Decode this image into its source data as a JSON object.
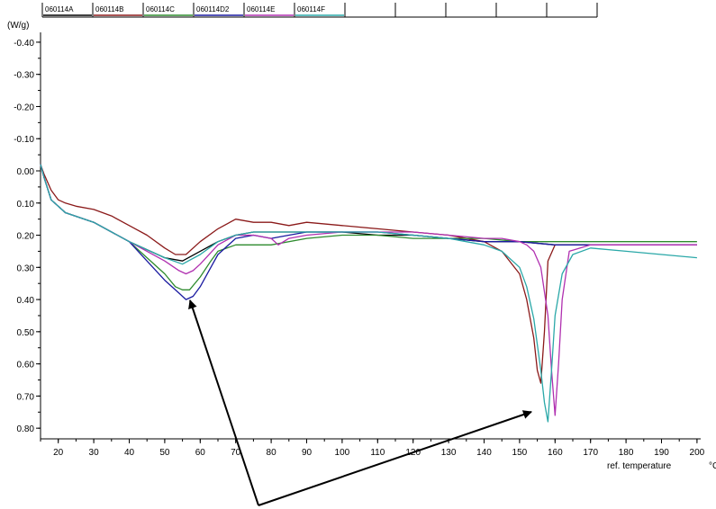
{
  "chart_data": {
    "type": "line",
    "y_unit": "(W/g)",
    "xlabel": "ref. temperature",
    "x_unit": "°C",
    "xlim": [
      15,
      200
    ],
    "ylim": [
      -0.42,
      0.85
    ],
    "y_inverted": true,
    "grid": false,
    "legend_placement": "top",
    "x_ticks": [
      "20",
      "30",
      "40",
      "50",
      "60",
      "70",
      "80",
      "90",
      "100",
      "110",
      "120",
      "130",
      "140",
      "150",
      "160",
      "170",
      "180",
      "190",
      "200"
    ],
    "y_ticks": [
      "-0.40",
      "-0.30",
      "-0.20",
      "-0.10",
      "0.00",
      "0.10",
      "0.20",
      "0.30",
      "0.40",
      "0.50",
      "0.60",
      "0.70",
      "0.80"
    ],
    "series": [
      {
        "name": "060114A",
        "color": "#000000",
        "x": [
          15,
          16,
          18,
          22,
          30,
          40,
          50,
          55,
          60,
          65,
          70,
          75,
          80,
          90,
          100,
          110,
          120,
          130,
          140,
          150,
          160,
          170,
          180,
          190,
          200
        ],
        "y": [
          -0.02,
          0.02,
          0.09,
          0.13,
          0.16,
          0.22,
          0.27,
          0.28,
          0.25,
          0.22,
          0.2,
          0.19,
          0.19,
          0.19,
          0.19,
          0.2,
          0.2,
          0.21,
          0.22,
          0.22,
          0.23,
          0.23,
          0.23,
          0.23,
          0.23
        ]
      },
      {
        "name": "060114B",
        "color": "#8b1a1a",
        "x": [
          15,
          16,
          18,
          20,
          22,
          25,
          30,
          35,
          40,
          45,
          50,
          53,
          56,
          60,
          65,
          70,
          75,
          80,
          85,
          90,
          100,
          110,
          120,
          130,
          140,
          145,
          150,
          152,
          154,
          155,
          156,
          157,
          158,
          160,
          170,
          180,
          190,
          200
        ],
        "y": [
          -0.02,
          0.01,
          0.06,
          0.09,
          0.1,
          0.11,
          0.12,
          0.14,
          0.17,
          0.2,
          0.24,
          0.26,
          0.26,
          0.22,
          0.18,
          0.15,
          0.16,
          0.16,
          0.17,
          0.16,
          0.17,
          0.18,
          0.19,
          0.2,
          0.22,
          0.25,
          0.32,
          0.4,
          0.52,
          0.62,
          0.66,
          0.5,
          0.28,
          0.23,
          0.23,
          0.23,
          0.23,
          0.23
        ]
      },
      {
        "name": "060114C",
        "color": "#2e8b2e",
        "x": [
          15,
          16,
          18,
          22,
          30,
          40,
          45,
          50,
          53,
          55,
          57,
          60,
          63,
          65,
          70,
          75,
          80,
          90,
          100,
          110,
          120,
          130,
          140,
          150,
          160,
          170,
          180,
          190,
          200
        ],
        "y": [
          -0.02,
          0.02,
          0.09,
          0.13,
          0.16,
          0.22,
          0.27,
          0.32,
          0.36,
          0.37,
          0.37,
          0.33,
          0.28,
          0.25,
          0.23,
          0.23,
          0.23,
          0.21,
          0.2,
          0.2,
          0.21,
          0.21,
          0.21,
          0.22,
          0.22,
          0.22,
          0.22,
          0.22,
          0.22
        ]
      },
      {
        "name": "060114D2",
        "color": "#1a1aa0",
        "x": [
          15,
          16,
          18,
          22,
          30,
          40,
          45,
          50,
          54,
          56,
          58,
          60,
          63,
          65,
          70,
          75,
          80,
          85,
          90,
          100,
          110,
          120,
          130,
          140,
          150,
          160,
          170,
          180,
          190,
          200
        ],
        "y": [
          -0.02,
          0.02,
          0.09,
          0.13,
          0.16,
          0.22,
          0.28,
          0.34,
          0.38,
          0.4,
          0.39,
          0.36,
          0.3,
          0.26,
          0.21,
          0.2,
          0.21,
          0.2,
          0.19,
          0.19,
          0.19,
          0.2,
          0.21,
          0.22,
          0.22,
          0.23,
          0.23,
          0.23,
          0.23,
          0.23
        ]
      },
      {
        "name": "060114E",
        "color": "#b030b0",
        "x": [
          15,
          16,
          18,
          22,
          30,
          40,
          50,
          54,
          56,
          58,
          60,
          65,
          70,
          75,
          80,
          82,
          85,
          90,
          100,
          110,
          120,
          130,
          140,
          145,
          150,
          152,
          154,
          156,
          158,
          159,
          160,
          161,
          162,
          164,
          170,
          180,
          190,
          200
        ],
        "y": [
          -0.02,
          0.02,
          0.09,
          0.13,
          0.16,
          0.22,
          0.28,
          0.31,
          0.32,
          0.31,
          0.29,
          0.23,
          0.2,
          0.2,
          0.21,
          0.23,
          0.21,
          0.2,
          0.19,
          0.19,
          0.19,
          0.2,
          0.21,
          0.21,
          0.22,
          0.23,
          0.25,
          0.3,
          0.45,
          0.62,
          0.76,
          0.6,
          0.4,
          0.25,
          0.23,
          0.23,
          0.23,
          0.23
        ]
      },
      {
        "name": "060114F",
        "color": "#2aa8a8",
        "x": [
          15,
          16,
          18,
          22,
          30,
          40,
          50,
          55,
          60,
          65,
          70,
          75,
          80,
          85,
          90,
          100,
          110,
          120,
          130,
          140,
          145,
          150,
          152,
          154,
          156,
          157,
          158,
          159,
          160,
          162,
          165,
          170,
          180,
          190,
          200
        ],
        "y": [
          -0.02,
          0.02,
          0.09,
          0.13,
          0.16,
          0.22,
          0.27,
          0.29,
          0.26,
          0.22,
          0.2,
          0.19,
          0.19,
          0.19,
          0.19,
          0.19,
          0.19,
          0.2,
          0.21,
          0.23,
          0.25,
          0.3,
          0.36,
          0.46,
          0.62,
          0.72,
          0.78,
          0.62,
          0.45,
          0.32,
          0.26,
          0.24,
          0.25,
          0.26,
          0.27
        ]
      }
    ]
  }
}
